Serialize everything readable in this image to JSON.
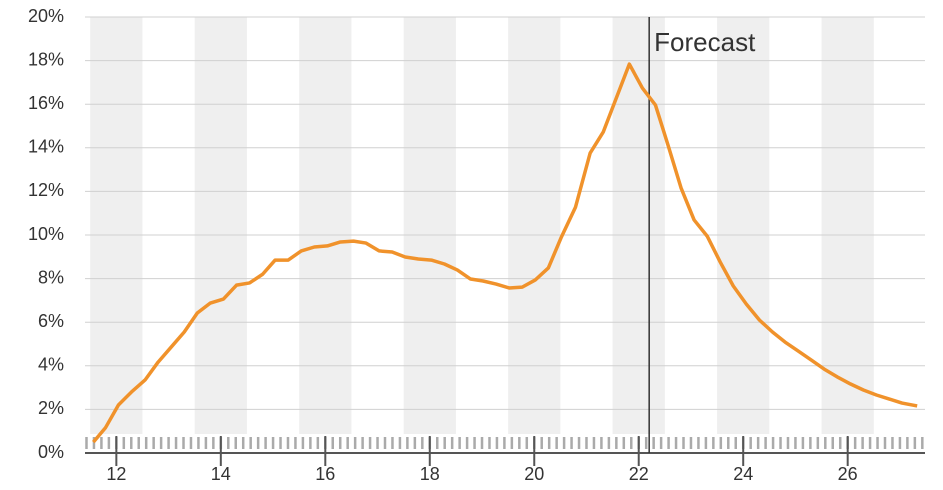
{
  "chart_data": {
    "type": "line",
    "x": [
      11.56,
      11.79,
      12.04,
      12.29,
      12.55,
      12.8,
      13.05,
      13.3,
      13.55,
      13.8,
      14.05,
      14.3,
      14.55,
      14.8,
      15.04,
      15.29,
      15.54,
      15.79,
      16.04,
      16.29,
      16.54,
      16.78,
      17.03,
      17.28,
      17.53,
      17.78,
      18.03,
      18.28,
      18.53,
      18.78,
      19.02,
      19.27,
      19.52,
      19.77,
      20.02,
      20.27,
      20.52,
      20.79,
      21.07,
      21.32,
      21.57,
      21.82,
      22.07,
      22.32,
      22.56,
      22.81,
      23.06,
      23.31,
      23.56,
      23.81,
      24.06,
      24.31,
      24.56,
      24.8,
      25.05,
      25.3,
      25.55,
      25.8,
      26.05,
      26.3,
      26.55,
      26.79,
      27.04,
      27.33
    ],
    "series": [
      {
        "color": "#f0922b",
        "values": [
          0.5,
          1.15,
          2.2,
          2.8,
          3.35,
          4.17,
          4.86,
          5.55,
          6.42,
          6.88,
          7.06,
          7.7,
          7.8,
          8.2,
          8.85,
          8.85,
          9.27,
          9.45,
          9.5,
          9.68,
          9.72,
          9.63,
          9.27,
          9.22,
          8.99,
          8.9,
          8.85,
          8.67,
          8.39,
          7.98,
          7.89,
          7.75,
          7.57,
          7.61,
          7.94,
          8.49,
          9.91,
          11.28,
          13.76,
          14.72,
          16.28,
          17.84,
          16.74,
          15.96,
          14.13,
          12.16,
          10.69,
          9.95,
          8.76,
          7.66,
          6.83,
          6.1,
          5.55,
          5.09,
          4.68,
          4.27,
          3.85,
          3.49,
          3.17,
          2.89,
          2.66,
          2.48,
          2.29,
          2.16
        ]
      }
    ],
    "xlim": [
      11.4,
      27.48
    ],
    "xticks": [
      12,
      14,
      16,
      18,
      20,
      22,
      24,
      26
    ],
    "ylim": [
      0,
      20
    ],
    "yticks": [
      {
        "value": 0,
        "label": "0%"
      },
      {
        "value": 2,
        "label": "2%"
      },
      {
        "value": 4,
        "label": "4%"
      },
      {
        "value": 6,
        "label": "6%"
      },
      {
        "value": 8,
        "label": "8%"
      },
      {
        "value": 10,
        "label": "10%"
      },
      {
        "value": 12,
        "label": "12%"
      },
      {
        "value": 14,
        "label": "14%"
      },
      {
        "value": 16,
        "label": "16%"
      },
      {
        "value": 18,
        "label": "18%"
      },
      {
        "value": 20,
        "label": "20%"
      }
    ],
    "grid": true,
    "annotations": [
      {
        "text": "Forecast",
        "x": 22.2
      }
    ]
  }
}
